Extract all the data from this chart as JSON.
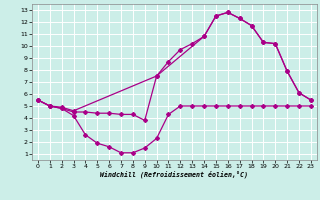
{
  "xlabel": "Windchill (Refroidissement éolien,°C)",
  "bg_color": "#cceee8",
  "grid_color": "#ffffff",
  "line_color": "#aa0088",
  "xlim": [
    -0.5,
    23.5
  ],
  "ylim": [
    0.5,
    13.5
  ],
  "xticks": [
    0,
    1,
    2,
    3,
    4,
    5,
    6,
    7,
    8,
    9,
    10,
    11,
    12,
    13,
    14,
    15,
    16,
    17,
    18,
    19,
    20,
    21,
    22,
    23
  ],
  "yticks": [
    1,
    2,
    3,
    4,
    5,
    6,
    7,
    8,
    9,
    10,
    11,
    12,
    13
  ],
  "line1_x": [
    0,
    1,
    2,
    3,
    4,
    5,
    6,
    7,
    8,
    9,
    10,
    11,
    12,
    13,
    14,
    15,
    16,
    17,
    18,
    19,
    20,
    21,
    22,
    23
  ],
  "line1_y": [
    5.5,
    5.0,
    4.8,
    4.5,
    4.5,
    4.4,
    4.4,
    4.3,
    4.3,
    3.8,
    7.5,
    8.7,
    9.7,
    10.2,
    10.8,
    12.5,
    12.8,
    12.3,
    11.7,
    10.3,
    10.2,
    7.9,
    6.1,
    5.5
  ],
  "line2_x": [
    0,
    1,
    2,
    3,
    4,
    5,
    6,
    7,
    8,
    9,
    10,
    11,
    12,
    13,
    14,
    15,
    16,
    17,
    18,
    19,
    20,
    21,
    22,
    23
  ],
  "line2_y": [
    5.5,
    5.0,
    4.8,
    4.2,
    2.6,
    1.9,
    1.6,
    1.1,
    1.1,
    1.5,
    2.3,
    4.3,
    5.0,
    5.0,
    5.0,
    5.0,
    5.0,
    5.0,
    5.0,
    5.0,
    5.0,
    5.0,
    5.0,
    5.0
  ],
  "line3_x": [
    0,
    1,
    2,
    3,
    10,
    14,
    15,
    16,
    17,
    18,
    19,
    20,
    21,
    22,
    23
  ],
  "line3_y": [
    5.5,
    5.0,
    4.9,
    4.6,
    7.5,
    10.8,
    12.5,
    12.8,
    12.3,
    11.7,
    10.3,
    10.2,
    7.9,
    6.1,
    5.5
  ]
}
